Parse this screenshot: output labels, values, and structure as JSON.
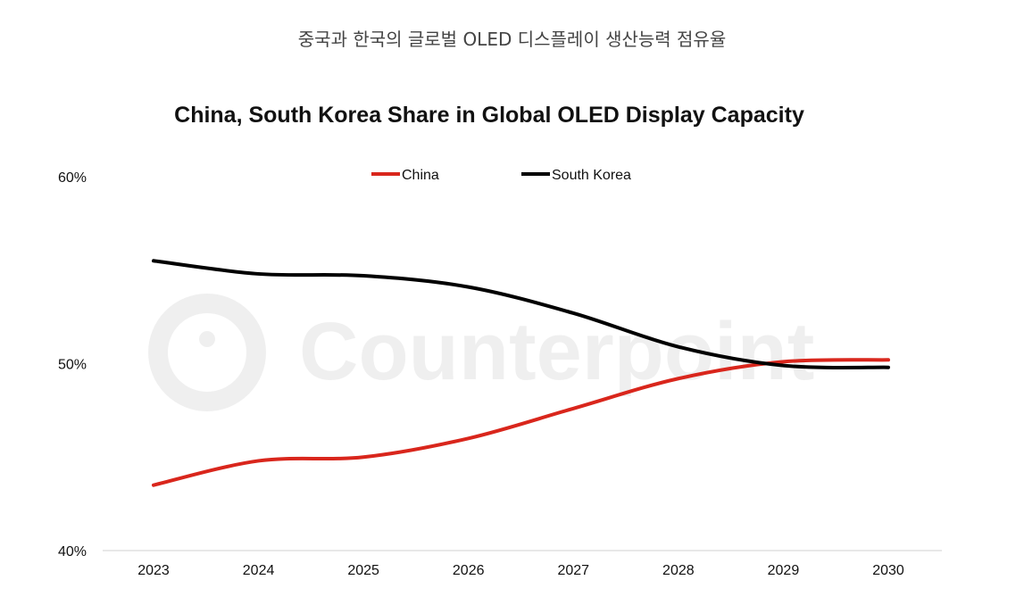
{
  "caption": "중국과 한국의 글로벌 OLED 디스플레이 생산능력 점유율",
  "watermark": "Counterpoint",
  "chart_data": {
    "type": "line",
    "title": "China, South Korea Share in Global OLED Display Capacity",
    "xlabel": "",
    "ylabel": "",
    "categories": [
      "2023",
      "2024",
      "2025",
      "2026",
      "2027",
      "2028",
      "2029",
      "2030"
    ],
    "ylim": [
      40,
      60
    ],
    "yticks": [
      "40%",
      "50%",
      "60%"
    ],
    "ytick_values": [
      40,
      50,
      60
    ],
    "grid": false,
    "legend": "top-center",
    "smooth": true,
    "series": [
      {
        "name": "China",
        "color": "#d9261c",
        "values": [
          43.5,
          44.8,
          45.0,
          46.0,
          47.6,
          49.2,
          50.1,
          50.2
        ]
      },
      {
        "name": "South Korea",
        "color": "#000000",
        "values": [
          55.5,
          54.8,
          54.7,
          54.1,
          52.7,
          50.9,
          49.9,
          49.8
        ]
      }
    ]
  }
}
